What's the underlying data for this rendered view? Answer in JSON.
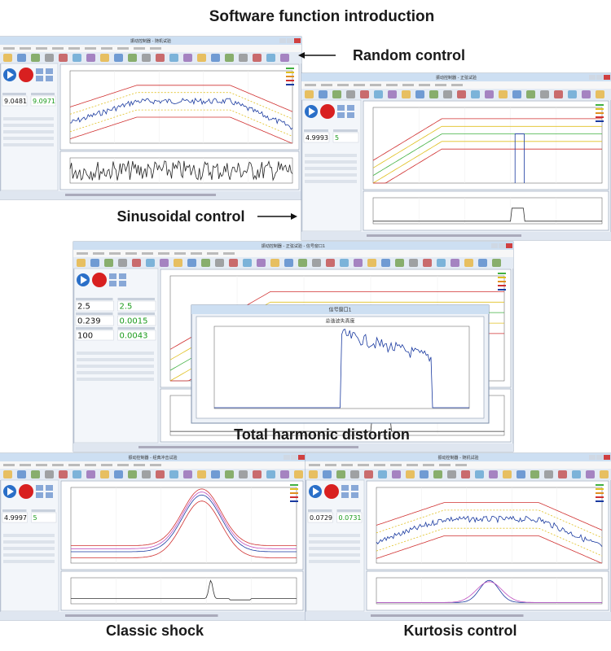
{
  "header": {
    "title": "Software function introduction"
  },
  "labels": [
    "Random control",
    "Sinusoidal control",
    "Total harmonic distortion",
    "Classic shock",
    "Kurtosis control"
  ],
  "windows": [
    {
      "title": "振动控制器 - 随机试验",
      "readings": [
        "9.0481",
        "9.0971"
      ]
    },
    {
      "title": "振动控制器 - 正弦试验",
      "readings": [
        "4.9993",
        "5"
      ]
    },
    {
      "title": "振动控制器 - 正弦试验 - 信号窗口1",
      "readings": [
        "2.5",
        "2.5",
        "0.239",
        "0.0015",
        "100",
        "0.0043"
      ],
      "dialog_title": "信号窗口1",
      "dialog_plot_title": "总谐波失真度"
    },
    {
      "title": "振动控制器 - 经典冲击试验",
      "readings": [
        "4.9997",
        "5"
      ]
    },
    {
      "title": "振动控制器 - 随机试验",
      "readings": [
        "0.0729",
        "0.0731"
      ]
    }
  ]
}
